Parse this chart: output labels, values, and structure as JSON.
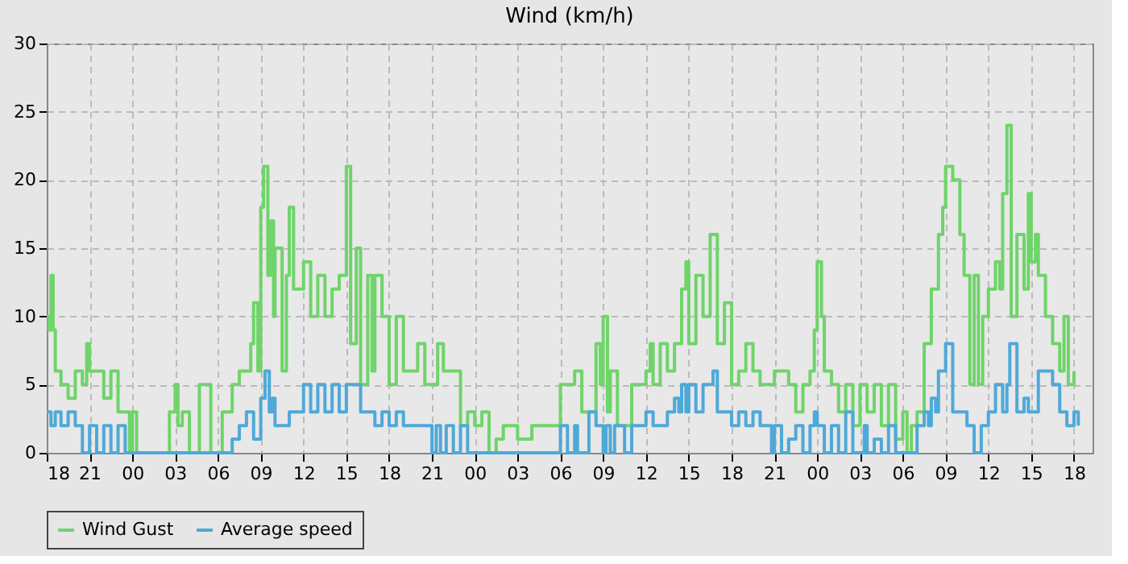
{
  "chart_data": {
    "type": "step",
    "title": "Wind (km/h)",
    "xlim": [
      18,
      91.3
    ],
    "ylim": [
      0,
      30
    ],
    "yticks": [
      0,
      5,
      10,
      15,
      20,
      25,
      30
    ],
    "xticks": [
      {
        "value": 18,
        "label": "18"
      },
      {
        "value": 21,
        "label": "21"
      },
      {
        "value": 24,
        "label": "00"
      },
      {
        "value": 27,
        "label": "03"
      },
      {
        "value": 30,
        "label": "06"
      },
      {
        "value": 33,
        "label": "09"
      },
      {
        "value": 36,
        "label": "12"
      },
      {
        "value": 39,
        "label": "15"
      },
      {
        "value": 42,
        "label": "18"
      },
      {
        "value": 45,
        "label": "21"
      },
      {
        "value": 48,
        "label": "00"
      },
      {
        "value": 51,
        "label": "03"
      },
      {
        "value": 54,
        "label": "06"
      },
      {
        "value": 57,
        "label": "09"
      },
      {
        "value": 60,
        "label": "12"
      },
      {
        "value": 63,
        "label": "15"
      },
      {
        "value": 66,
        "label": "18"
      },
      {
        "value": 69,
        "label": "21"
      },
      {
        "value": 72,
        "label": "00"
      },
      {
        "value": 75,
        "label": "03"
      },
      {
        "value": 78,
        "label": "06"
      },
      {
        "value": 81,
        "label": "09"
      },
      {
        "value": 84,
        "label": "12"
      },
      {
        "value": 87,
        "label": "15"
      },
      {
        "value": 90,
        "label": "18"
      }
    ],
    "grid": true,
    "legend": "bottom",
    "marker": "none",
    "line_style": "solid",
    "series": [
      {
        "name": "Wind Gust",
        "color": "#6fd46a",
        "x": [
          18,
          18.15,
          18.3,
          18.45,
          18.6,
          19,
          19.5,
          20,
          20.5,
          20.8,
          21,
          21.5,
          22,
          22.5,
          23,
          23.5,
          23.8,
          24,
          24.3,
          26.6,
          27,
          27.2,
          27.5,
          28,
          28.7,
          29.5,
          30.3,
          31,
          31.5,
          32.3,
          32.5,
          32.8,
          33,
          33.2,
          33.5,
          33.7,
          33.9,
          34,
          34.5,
          34.8,
          35,
          35.3,
          36,
          36.5,
          37,
          37.5,
          38,
          38.5,
          39,
          39.3,
          39.7,
          40,
          40.5,
          40.8,
          41,
          41.5,
          42,
          42.5,
          43,
          44,
          44.5,
          45,
          45.4,
          45.8,
          46,
          47,
          47.5,
          48,
          48.5,
          49,
          49.5,
          50,
          51,
          52,
          54,
          55,
          55.5,
          56.5,
          56.8,
          57,
          57.3,
          57.5,
          58,
          58.5,
          59,
          60,
          60.3,
          60.5,
          61,
          61.5,
          62,
          62.5,
          62.8,
          63,
          63.5,
          64,
          64.5,
          65,
          65.5,
          66,
          66.5,
          67,
          67.5,
          68,
          69,
          70,
          70.5,
          71,
          71.5,
          71.8,
          72,
          72.3,
          72.5,
          73,
          73.5,
          74,
          74.5,
          75,
          75.5,
          76,
          76.5,
          77,
          77.5,
          78,
          78.3,
          78.6,
          79,
          79.5,
          80,
          80.5,
          80.8,
          81,
          81.5,
          82,
          82.3,
          82.7,
          83,
          83.3,
          83.6,
          84,
          84.5,
          84.8,
          85,
          85.3,
          85.6,
          86,
          86.5,
          86.8,
          87,
          87.3,
          87.5,
          88,
          88.5,
          89,
          89.3,
          89.6,
          90
        ],
        "values": [
          10,
          9,
          13,
          9,
          6,
          5,
          4,
          6,
          5,
          8,
          6,
          6,
          4,
          6,
          3,
          3,
          0,
          3,
          0,
          3,
          5,
          2,
          3,
          0,
          5,
          0,
          3,
          5,
          6,
          8,
          11,
          6,
          18,
          21,
          13,
          17,
          10,
          15,
          6,
          13,
          18,
          12,
          14,
          10,
          13,
          10,
          12,
          13,
          21,
          8,
          15,
          5,
          13,
          6,
          13,
          10,
          5,
          10,
          6,
          8,
          5,
          5,
          8,
          6,
          6,
          2,
          3,
          2,
          3,
          0,
          1,
          2,
          1,
          2,
          5,
          6,
          3,
          8,
          5,
          10,
          3,
          6,
          2,
          2,
          5,
          6,
          8,
          5,
          8,
          6,
          8,
          12,
          14,
          8,
          13,
          10,
          16,
          8,
          11,
          5,
          6,
          8,
          6,
          5,
          6,
          5,
          3,
          5,
          6,
          9,
          14,
          10,
          6,
          5,
          3,
          5,
          2,
          5,
          3,
          5,
          2,
          5,
          1,
          3,
          0,
          2,
          3,
          8,
          12,
          16,
          18,
          21,
          20,
          16,
          13,
          5,
          13,
          5,
          10,
          12,
          14,
          12,
          19,
          24,
          10,
          16,
          12,
          19,
          14,
          16,
          13,
          10,
          8,
          6,
          10,
          5,
          6
        ]
      },
      {
        "name": "Average speed",
        "color": "#4fa9d8",
        "x": [
          18,
          18.3,
          18.6,
          19,
          19.5,
          20,
          20.5,
          21,
          21.5,
          22,
          22.5,
          23,
          23.5,
          24,
          31,
          31.5,
          32,
          32.5,
          33,
          33.3,
          33.6,
          33.8,
          34,
          35,
          36,
          36.5,
          37,
          37.5,
          38,
          38.5,
          39,
          40,
          41,
          41.5,
          42,
          42.5,
          43,
          45,
          45.3,
          45.6,
          46,
          46.5,
          47,
          47.5,
          54,
          54.5,
          55,
          55.2,
          56,
          56.5,
          57,
          57.2,
          57.5,
          57.8,
          58.5,
          59,
          60,
          60.5,
          61.5,
          62,
          62.3,
          62.5,
          62.8,
          63,
          63.5,
          64,
          64.7,
          65,
          66,
          66.5,
          67,
          67.5,
          68,
          68.8,
          69,
          69.5,
          70,
          70.5,
          71,
          71.5,
          71.8,
          72,
          72.5,
          73,
          73.5,
          74,
          74.5,
          75.3,
          75.5,
          76,
          76.5,
          77,
          77.5,
          79,
          79.5,
          79.8,
          80,
          80.3,
          80.5,
          81,
          81.5,
          82.5,
          83,
          83.5,
          84,
          84.5,
          85,
          85.3,
          85.5,
          86,
          86.5,
          86.8,
          87.5,
          88.5,
          89,
          89.5,
          90,
          90.3
        ],
        "values": [
          3,
          2,
          3,
          2,
          3,
          2,
          0,
          2,
          0,
          2,
          0,
          2,
          0,
          0,
          1,
          2,
          3,
          1,
          4,
          6,
          3,
          4,
          2,
          3,
          5,
          3,
          5,
          3,
          5,
          3,
          5,
          3,
          2,
          3,
          2,
          3,
          2,
          0,
          2,
          0,
          2,
          0,
          2,
          0,
          2,
          0,
          2,
          0,
          3,
          2,
          0,
          2,
          0,
          2,
          0,
          2,
          3,
          2,
          3,
          4,
          3,
          5,
          3,
          5,
          3,
          5,
          6,
          3,
          2,
          3,
          2,
          3,
          2,
          0,
          2,
          0,
          1,
          2,
          0,
          2,
          3,
          2,
          0,
          2,
          0,
          3,
          0,
          2,
          0,
          1,
          0,
          2,
          0,
          2,
          3,
          2,
          4,
          3,
          6,
          8,
          3,
          2,
          0,
          2,
          3,
          5,
          3,
          5,
          8,
          3,
          4,
          3,
          6,
          5,
          3,
          2,
          3,
          2
        ]
      }
    ]
  }
}
